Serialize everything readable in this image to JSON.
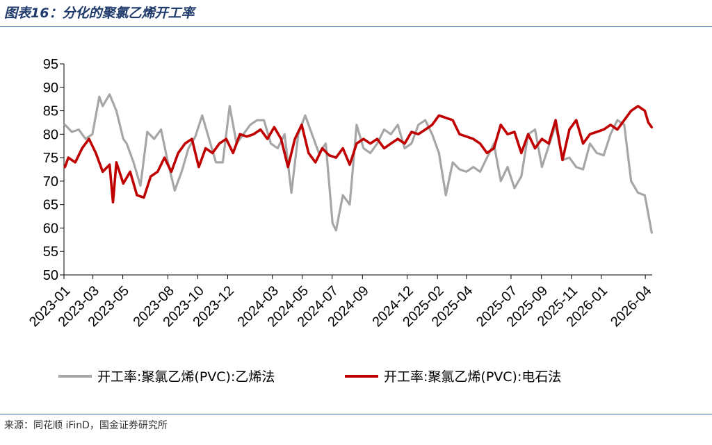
{
  "header": {
    "title": "图表16：分化的聚氯乙烯开工率"
  },
  "footer": {
    "source": "来源：同花顺 iFinD，国金证券研究所"
  },
  "chart_data": {
    "type": "line",
    "title": "图表16：分化的聚氯乙烯开工率",
    "xlabel": "",
    "ylabel": "",
    "ylim": [
      50,
      95
    ],
    "yticks": [
      50,
      55,
      60,
      65,
      70,
      75,
      80,
      85,
      90,
      95
    ],
    "xlim": [
      "2023-01",
      "2026-04"
    ],
    "x_tick_labels": [
      "2023-01",
      "2023-03",
      "2023-05",
      "2023-08",
      "2023-10",
      "2023-12",
      "2024-03",
      "2024-05",
      "2024-07",
      "2024-09",
      "2024-12",
      "2025-02",
      "2025-04",
      "2025-07",
      "2025-09",
      "2025-11",
      "2026-01",
      "2026-04"
    ],
    "grid": false,
    "legend_position": "bottom",
    "series": [
      {
        "name": "开工率:聚氯乙烯(PVC):乙烯法",
        "color": "#a6a6a6",
        "x": [
          "2023-01-03",
          "2023-01-17",
          "2023-01-31",
          "2023-02-14",
          "2023-02-28",
          "2023-03-14",
          "2023-03-21",
          "2023-04-04",
          "2023-04-18",
          "2023-05-02",
          "2023-05-09",
          "2023-05-23",
          "2023-06-06",
          "2023-06-20",
          "2023-07-04",
          "2023-07-18",
          "2023-08-01",
          "2023-08-15",
          "2023-08-29",
          "2023-09-12",
          "2023-09-26",
          "2023-10-10",
          "2023-10-24",
          "2023-11-07",
          "2023-11-21",
          "2023-12-05",
          "2023-12-19",
          "2024-01-02",
          "2024-01-16",
          "2024-01-30",
          "2024-02-13",
          "2024-02-27",
          "2024-03-12",
          "2024-03-26",
          "2024-04-09",
          "2024-04-23",
          "2024-05-07",
          "2024-05-21",
          "2024-06-04",
          "2024-06-18",
          "2024-07-02",
          "2024-07-09",
          "2024-07-23",
          "2024-08-06",
          "2024-08-20",
          "2024-09-03",
          "2024-09-17",
          "2024-10-01",
          "2024-10-15",
          "2024-10-29",
          "2024-11-12",
          "2024-11-26",
          "2024-12-10",
          "2024-12-24",
          "2025-01-07",
          "2025-01-21",
          "2025-02-04",
          "2025-02-18",
          "2025-03-04",
          "2025-03-18",
          "2025-04-01",
          "2025-04-15",
          "2025-04-29",
          "2025-05-13",
          "2025-05-27",
          "2025-06-10",
          "2025-06-24",
          "2025-07-08",
          "2025-07-22",
          "2025-08-05",
          "2025-08-19",
          "2025-09-02",
          "2025-09-16",
          "2025-09-30",
          "2025-10-14",
          "2025-10-28",
          "2025-11-11",
          "2025-11-25",
          "2025-12-09",
          "2025-12-23",
          "2026-01-06",
          "2026-01-20",
          "2026-02-03",
          "2026-02-17",
          "2026-03-03",
          "2026-03-17",
          "2026-03-31",
          "2026-04-14"
        ],
        "values": [
          82,
          80.5,
          81,
          79,
          80,
          88,
          86,
          88.5,
          85,
          79,
          78,
          74,
          69,
          80.5,
          79,
          81,
          74,
          68,
          72,
          77,
          79.5,
          84,
          79,
          74,
          74,
          86,
          78,
          80,
          82,
          83,
          83,
          78,
          77,
          80,
          67.5,
          80,
          84,
          80,
          76,
          78,
          61,
          59.5,
          67,
          65,
          82,
          77,
          76,
          78,
          81,
          80,
          82,
          77,
          78,
          82,
          83,
          80,
          76,
          67,
          74,
          72.5,
          72,
          73,
          72,
          75,
          78,
          70,
          73,
          68.5,
          71,
          80,
          81,
          73,
          77.5,
          82,
          74.5,
          75,
          73,
          72.5,
          78,
          76,
          75.5,
          80,
          83,
          82,
          70,
          67.5,
          67,
          59
        ]
      },
      {
        "name": "开工率:聚氯乙烯(PVC):电石法",
        "color": "#c00000",
        "x": [
          "2023-01-03",
          "2023-01-10",
          "2023-01-24",
          "2023-02-07",
          "2023-02-21",
          "2023-03-07",
          "2023-03-21",
          "2023-04-04",
          "2023-04-11",
          "2023-04-18",
          "2023-05-02",
          "2023-05-16",
          "2023-05-30",
          "2023-06-13",
          "2023-06-27",
          "2023-07-11",
          "2023-07-25",
          "2023-08-08",
          "2023-08-22",
          "2023-09-05",
          "2023-09-19",
          "2023-10-03",
          "2023-10-17",
          "2023-10-31",
          "2023-11-14",
          "2023-11-28",
          "2023-12-12",
          "2023-12-26",
          "2024-01-09",
          "2024-01-23",
          "2024-02-06",
          "2024-02-20",
          "2024-03-05",
          "2024-03-19",
          "2024-04-02",
          "2024-04-16",
          "2024-04-30",
          "2024-05-14",
          "2024-05-28",
          "2024-06-11",
          "2024-06-25",
          "2024-07-09",
          "2024-07-23",
          "2024-08-06",
          "2024-08-20",
          "2024-09-03",
          "2024-09-17",
          "2024-10-01",
          "2024-10-15",
          "2024-10-29",
          "2024-11-12",
          "2024-11-26",
          "2024-12-10",
          "2024-12-24",
          "2025-01-07",
          "2025-01-21",
          "2025-02-04",
          "2025-02-18",
          "2025-03-04",
          "2025-03-18",
          "2025-04-01",
          "2025-04-15",
          "2025-04-29",
          "2025-05-13",
          "2025-05-27",
          "2025-06-10",
          "2025-06-24",
          "2025-07-08",
          "2025-07-22",
          "2025-08-05",
          "2025-08-19",
          "2025-09-02",
          "2025-09-16",
          "2025-09-30",
          "2025-10-14",
          "2025-10-28",
          "2025-11-11",
          "2025-11-25",
          "2025-12-09",
          "2025-12-23",
          "2026-01-06",
          "2026-01-20",
          "2026-02-03",
          "2026-02-17",
          "2026-03-03",
          "2026-03-17",
          "2026-03-31",
          "2026-04-07",
          "2026-04-14"
        ],
        "values": [
          73,
          75,
          74,
          77,
          79,
          76,
          72,
          73.5,
          65.5,
          74,
          69.5,
          72,
          67,
          66.5,
          71,
          72,
          75,
          72,
          76,
          78,
          79,
          73,
          77,
          76,
          78,
          79,
          76,
          80,
          79.5,
          80,
          81,
          79,
          81.5,
          79,
          73,
          79,
          82,
          76,
          74,
          77,
          75.5,
          75,
          77,
          73.5,
          78,
          79,
          78,
          79,
          77,
          78,
          79,
          78,
          80.5,
          80,
          81,
          82,
          84,
          83.5,
          83,
          80,
          79.5,
          79,
          78,
          76,
          77,
          82,
          80,
          80.5,
          76,
          80,
          77,
          79,
          78,
          83,
          74.5,
          81,
          83,
          78,
          80,
          80.5,
          81,
          82,
          81,
          83,
          85,
          86,
          85,
          82.5,
          81.5
        ]
      }
    ]
  }
}
